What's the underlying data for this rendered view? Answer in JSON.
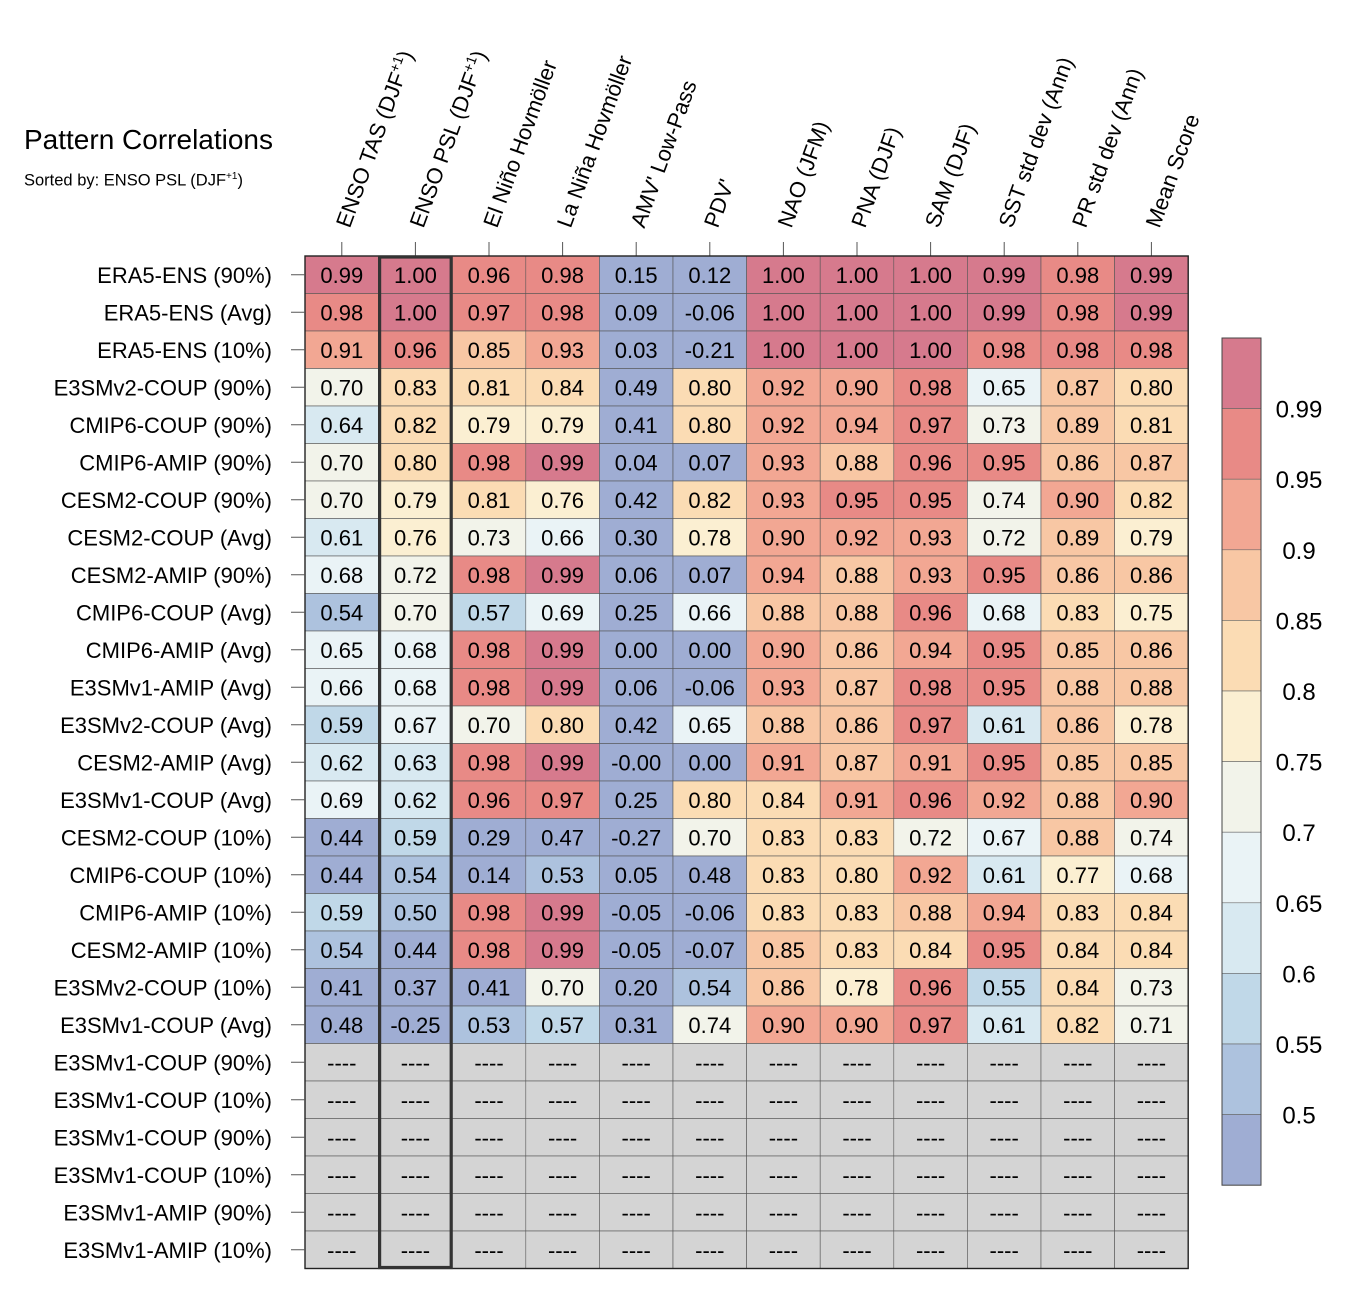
{
  "header": {
    "title": "Pattern Correlations",
    "subtitle_prefix": "Sorted by: ENSO PSL (DJF",
    "subtitle_sup": "+1",
    "subtitle_suffix": ")"
  },
  "chart_data": {
    "type": "heatmap",
    "title": "Pattern Correlations",
    "sorted_by": "ENSO PSL (DJF+1)",
    "highlighted_column": "ENSO PSL (DJF+1)",
    "missing_text": "----",
    "columns": [
      {
        "base": "ENSO TAS (DJF",
        "sup": "+1",
        "suffix": ")"
      },
      {
        "base": "ENSO PSL (DJF",
        "sup": "+1",
        "suffix": ")"
      },
      {
        "base": "El Niño Hovmöller",
        "sup": "",
        "suffix": ""
      },
      {
        "base": "La Niña Hovmöller",
        "sup": "",
        "suffix": ""
      },
      {
        "base": "AMV' Low-Pass",
        "sup": "",
        "suffix": ""
      },
      {
        "base": "PDV'",
        "sup": "",
        "suffix": ""
      },
      {
        "base": "NAO (JFM)",
        "sup": "",
        "suffix": ""
      },
      {
        "base": "PNA (DJF)",
        "sup": "",
        "suffix": ""
      },
      {
        "base": "SAM (DJF)",
        "sup": "",
        "suffix": ""
      },
      {
        "base": "SST std dev (Ann)",
        "sup": "",
        "suffix": ""
      },
      {
        "base": "PR std dev (Ann)",
        "sup": "",
        "suffix": ""
      },
      {
        "base": "Mean Score",
        "sup": "",
        "suffix": ""
      }
    ],
    "rows": [
      {
        "label": "ERA5-ENS (90%)",
        "values": [
          "0.99",
          "1.00",
          "0.96",
          "0.98",
          "0.15",
          "0.12",
          "1.00",
          "1.00",
          "1.00",
          "0.99",
          "0.98",
          "0.99"
        ]
      },
      {
        "label": "ERA5-ENS (Avg)",
        "values": [
          "0.98",
          "1.00",
          "0.97",
          "0.98",
          "0.09",
          "-0.06",
          "1.00",
          "1.00",
          "1.00",
          "0.99",
          "0.98",
          "0.99"
        ]
      },
      {
        "label": "ERA5-ENS (10%)",
        "values": [
          "0.91",
          "0.96",
          "0.85",
          "0.93",
          "0.03",
          "-0.21",
          "1.00",
          "1.00",
          "1.00",
          "0.98",
          "0.98",
          "0.98"
        ]
      },
      {
        "label": "E3SMv2-COUP (90%)",
        "values": [
          "0.70",
          "0.83",
          "0.81",
          "0.84",
          "0.49",
          "0.80",
          "0.92",
          "0.90",
          "0.98",
          "0.65",
          "0.87",
          "0.80"
        ]
      },
      {
        "label": "CMIP6-COUP (90%)",
        "values": [
          "0.64",
          "0.82",
          "0.79",
          "0.79",
          "0.41",
          "0.80",
          "0.92",
          "0.94",
          "0.97",
          "0.73",
          "0.89",
          "0.81"
        ]
      },
      {
        "label": "CMIP6-AMIP (90%)",
        "values": [
          "0.70",
          "0.80",
          "0.98",
          "0.99",
          "0.04",
          "0.07",
          "0.93",
          "0.88",
          "0.96",
          "0.95",
          "0.86",
          "0.87"
        ]
      },
      {
        "label": "CESM2-COUP (90%)",
        "values": [
          "0.70",
          "0.79",
          "0.81",
          "0.76",
          "0.42",
          "0.82",
          "0.93",
          "0.95",
          "0.95",
          "0.74",
          "0.90",
          "0.82"
        ]
      },
      {
        "label": "CESM2-COUP (Avg)",
        "values": [
          "0.61",
          "0.76",
          "0.73",
          "0.66",
          "0.30",
          "0.78",
          "0.90",
          "0.92",
          "0.93",
          "0.72",
          "0.89",
          "0.79"
        ]
      },
      {
        "label": "CESM2-AMIP (90%)",
        "values": [
          "0.68",
          "0.72",
          "0.98",
          "0.99",
          "0.06",
          "0.07",
          "0.94",
          "0.88",
          "0.93",
          "0.95",
          "0.86",
          "0.86"
        ]
      },
      {
        "label": "CMIP6-COUP (Avg)",
        "values": [
          "0.54",
          "0.70",
          "0.57",
          "0.69",
          "0.25",
          "0.66",
          "0.88",
          "0.88",
          "0.96",
          "0.68",
          "0.83",
          "0.75"
        ]
      },
      {
        "label": "CMIP6-AMIP (Avg)",
        "values": [
          "0.65",
          "0.68",
          "0.98",
          "0.99",
          "0.00",
          "0.00",
          "0.90",
          "0.86",
          "0.94",
          "0.95",
          "0.85",
          "0.86"
        ]
      },
      {
        "label": "E3SMv1-AMIP (Avg)",
        "values": [
          "0.66",
          "0.68",
          "0.98",
          "0.99",
          "0.06",
          "-0.06",
          "0.93",
          "0.87",
          "0.98",
          "0.95",
          "0.88",
          "0.88"
        ]
      },
      {
        "label": "E3SMv2-COUP (Avg)",
        "values": [
          "0.59",
          "0.67",
          "0.70",
          "0.80",
          "0.42",
          "0.65",
          "0.88",
          "0.86",
          "0.97",
          "0.61",
          "0.86",
          "0.78"
        ]
      },
      {
        "label": "CESM2-AMIP (Avg)",
        "values": [
          "0.62",
          "0.63",
          "0.98",
          "0.99",
          "-0.00",
          "0.00",
          "0.91",
          "0.87",
          "0.91",
          "0.95",
          "0.85",
          "0.85"
        ]
      },
      {
        "label": "E3SMv1-COUP (Avg)",
        "values": [
          "0.69",
          "0.62",
          "0.96",
          "0.97",
          "0.25",
          "0.80",
          "0.84",
          "0.91",
          "0.96",
          "0.92",
          "0.88",
          "0.90"
        ]
      },
      {
        "label": "CESM2-COUP (10%)",
        "values": [
          "0.44",
          "0.59",
          "0.29",
          "0.47",
          "-0.27",
          "0.70",
          "0.83",
          "0.83",
          "0.72",
          "0.67",
          "0.88",
          "0.74"
        ]
      },
      {
        "label": "CMIP6-COUP (10%)",
        "values": [
          "0.44",
          "0.54",
          "0.14",
          "0.53",
          "0.05",
          "0.48",
          "0.83",
          "0.80",
          "0.92",
          "0.61",
          "0.77",
          "0.68"
        ]
      },
      {
        "label": "CMIP6-AMIP (10%)",
        "values": [
          "0.59",
          "0.50",
          "0.98",
          "0.99",
          "-0.05",
          "-0.06",
          "0.83",
          "0.83",
          "0.88",
          "0.94",
          "0.83",
          "0.84"
        ]
      },
      {
        "label": "CESM2-AMIP (10%)",
        "values": [
          "0.54",
          "0.44",
          "0.98",
          "0.99",
          "-0.05",
          "-0.07",
          "0.85",
          "0.83",
          "0.84",
          "0.95",
          "0.84",
          "0.84"
        ]
      },
      {
        "label": "E3SMv2-COUP (10%)",
        "values": [
          "0.41",
          "0.37",
          "0.41",
          "0.70",
          "0.20",
          "0.54",
          "0.86",
          "0.78",
          "0.96",
          "0.55",
          "0.84",
          "0.73"
        ]
      },
      {
        "label": "E3SMv1-COUP (Avg)",
        "values": [
          "0.48",
          "-0.25",
          "0.53",
          "0.57",
          "0.31",
          "0.74",
          "0.90",
          "0.90",
          "0.97",
          "0.61",
          "0.82",
          "0.71"
        ]
      },
      {
        "label": "E3SMv1-COUP (90%)",
        "values": [
          "----",
          "----",
          "----",
          "----",
          "----",
          "----",
          "----",
          "----",
          "----",
          "----",
          "----",
          "----"
        ]
      },
      {
        "label": "E3SMv1-COUP (10%)",
        "values": [
          "----",
          "----",
          "----",
          "----",
          "----",
          "----",
          "----",
          "----",
          "----",
          "----",
          "----",
          "----"
        ]
      },
      {
        "label": "E3SMv1-COUP (90%)",
        "values": [
          "----",
          "----",
          "----",
          "----",
          "----",
          "----",
          "----",
          "----",
          "----",
          "----",
          "----",
          "----"
        ]
      },
      {
        "label": "E3SMv1-COUP (10%)",
        "values": [
          "----",
          "----",
          "----",
          "----",
          "----",
          "----",
          "----",
          "----",
          "----",
          "----",
          "----",
          "----"
        ]
      },
      {
        "label": "E3SMv1-AMIP (90%)",
        "values": [
          "----",
          "----",
          "----",
          "----",
          "----",
          "----",
          "----",
          "----",
          "----",
          "----",
          "----",
          "----"
        ]
      },
      {
        "label": "E3SMv1-AMIP (10%)",
        "values": [
          "----",
          "----",
          "----",
          "----",
          "----",
          "----",
          "----",
          "----",
          "----",
          "----",
          "----",
          "----"
        ]
      }
    ],
    "colorbar": {
      "levels": [
        0.5,
        0.55,
        0.6,
        0.65,
        0.7,
        0.75,
        0.8,
        0.85,
        0.9,
        0.95,
        0.99
      ],
      "tick_labels": [
        "0.5",
        "0.55",
        "0.6",
        "0.65",
        "0.7",
        "0.75",
        "0.8",
        "0.85",
        "0.9",
        "0.95",
        "0.99"
      ],
      "colors": [
        "#9fadd3",
        "#adc2de",
        "#c0d8e8",
        "#d8e9f1",
        "#eaf3f6",
        "#f2f3ea",
        "#fbefd2",
        "#fbdcb4",
        "#f8c7a4",
        "#f2a793",
        "#e88a86",
        "#d67a8d"
      ],
      "missing_color": "#d4d4d4"
    }
  }
}
